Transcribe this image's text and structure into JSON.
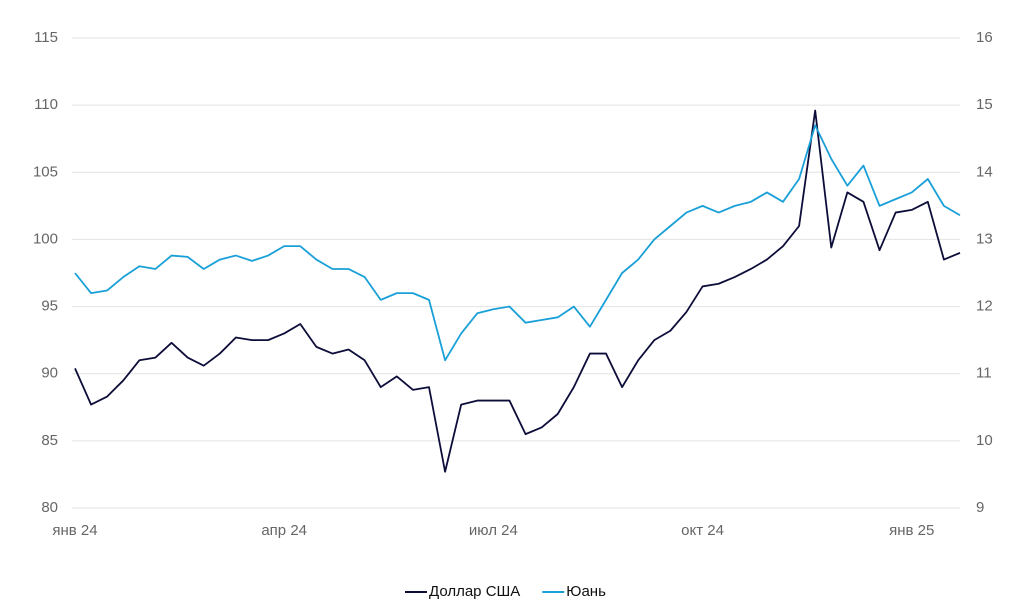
{
  "chart_data": {
    "type": "line",
    "categories": [
      "янв 24",
      null,
      null,
      null,
      null,
      null,
      null,
      null,
      null,
      null,
      null,
      null,
      null,
      "апр 24",
      null,
      null,
      null,
      null,
      null,
      null,
      null,
      null,
      null,
      null,
      null,
      null,
      "июл 24",
      null,
      null,
      null,
      null,
      null,
      null,
      null,
      null,
      null,
      null,
      null,
      null,
      "окт 24",
      null,
      null,
      null,
      null,
      null,
      null,
      null,
      null,
      null,
      null,
      null,
      null,
      "янв 25",
      null,
      null,
      null
    ],
    "series": [
      {
        "name": "Доллар США",
        "color": "#0d0d3a",
        "values": [
          90.4,
          87.7,
          88.3,
          89.5,
          91.0,
          91.2,
          92.3,
          91.2,
          90.6,
          91.5,
          92.7,
          92.5,
          92.5,
          93.0,
          93.7,
          92.0,
          91.5,
          91.8,
          91.0,
          89.0,
          89.8,
          88.8,
          89.0,
          82.7,
          87.7,
          88.0,
          88.0,
          88.0,
          85.5,
          86.0,
          87.0,
          89.0,
          91.5,
          91.5,
          89.0,
          91.0,
          92.5,
          93.2,
          94.6,
          96.5,
          96.7,
          97.2,
          97.8,
          98.5,
          99.5,
          101.0,
          109.6,
          99.4,
          103.5,
          102.8,
          99.2,
          102.0,
          102.2,
          102.8,
          98.5,
          99.0
        ]
      },
      {
        "name": "Юань",
        "color": "#1aa0d8",
        "axis": "y2",
        "values": [
          12.5,
          12.2,
          12.24,
          12.44,
          12.6,
          12.56,
          12.76,
          12.74,
          12.56,
          12.7,
          12.76,
          12.68,
          12.76,
          12.9,
          12.9,
          12.7,
          12.56,
          12.56,
          12.44,
          12.1,
          12.2,
          12.2,
          12.1,
          11.2,
          11.6,
          11.9,
          11.96,
          12.0,
          11.76,
          11.8,
          11.84,
          12.0,
          11.7,
          12.1,
          12.5,
          12.7,
          13.0,
          13.2,
          13.4,
          13.5,
          13.4,
          13.5,
          13.56,
          13.7,
          13.56,
          13.9,
          14.7,
          14.2,
          13.8,
          14.1,
          13.5,
          13.6,
          13.7,
          13.9,
          13.5,
          13.36
        ]
      }
    ],
    "ylim": [
      80,
      115
    ],
    "yticks": [
      80,
      85,
      90,
      95,
      100,
      105,
      110,
      115
    ],
    "y2lim": [
      9,
      16
    ],
    "y2ticks": [
      9,
      10,
      11,
      12,
      13,
      14,
      15,
      16
    ],
    "grid": true,
    "legend": "bottom"
  }
}
